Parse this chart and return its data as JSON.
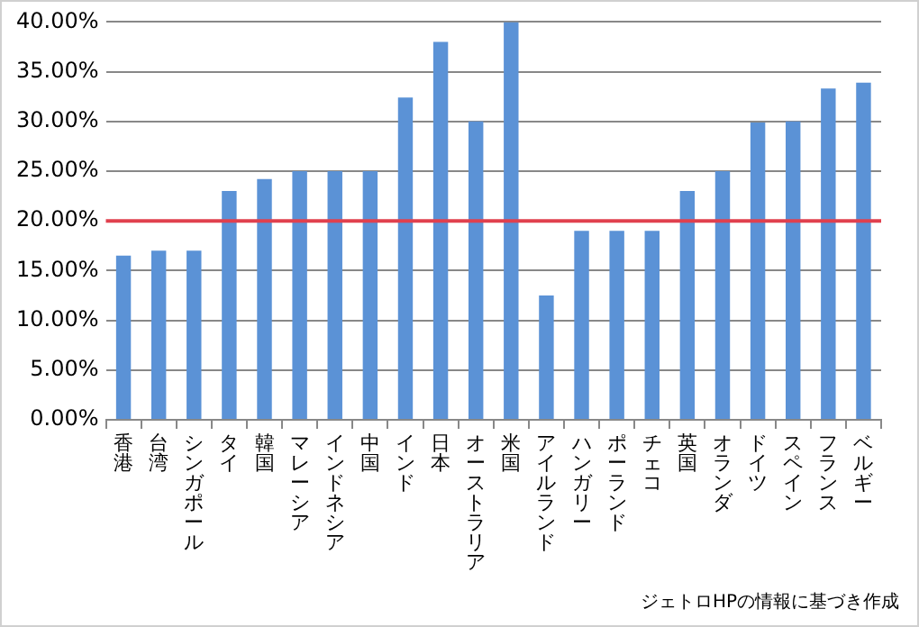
{
  "chart_data": {
    "type": "bar",
    "categories": [
      "香港",
      "台湾",
      "シンガポール",
      "タイ",
      "韓国",
      "マレーシア",
      "インドネシア",
      "中国",
      "インド",
      "日本",
      "オーストラリア",
      "米国",
      "アイルランド",
      "ハンガリー",
      "ポーランド",
      "チェコ",
      "英国",
      "オランダ",
      "ドイツ",
      "スペイン",
      "フランス",
      "ベルギー"
    ],
    "values": [
      16.5,
      17,
      17,
      23,
      24.2,
      25,
      25,
      25,
      32.4,
      38,
      30,
      40,
      12.5,
      19,
      19,
      19,
      23,
      25,
      29.9,
      30,
      33.3,
      33.9
    ],
    "color": "#5b92d6",
    "ylim": [
      0,
      40
    ],
    "yticks": [
      {
        "value": 0,
        "label": "0.00%"
      },
      {
        "value": 5,
        "label": "5.00%"
      },
      {
        "value": 10,
        "label": "10.00%"
      },
      {
        "value": 15,
        "label": "15.00%"
      },
      {
        "value": 20,
        "label": "20.00%"
      },
      {
        "value": 25,
        "label": "25.00%"
      },
      {
        "value": 30,
        "label": "30.00%"
      },
      {
        "value": 35,
        "label": "35.00%"
      },
      {
        "value": 40,
        "label": "40.00%"
      }
    ],
    "grid": "y",
    "legend": false,
    "ref_lines": [
      {
        "axis": "y",
        "value": 20,
        "color": "#e0404e"
      }
    ],
    "annotations": [
      "ジェトロHPの情報に基づき作成"
    ]
  }
}
